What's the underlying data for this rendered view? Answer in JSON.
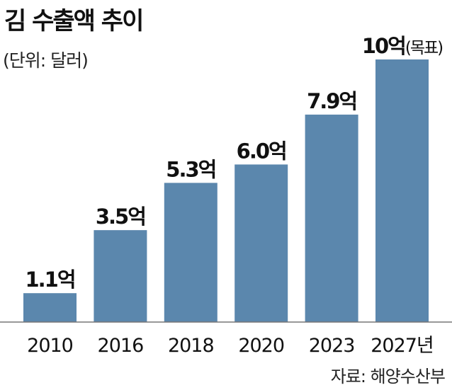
{
  "chart_data": {
    "type": "bar",
    "title": "김 수출액 추이",
    "unit_note": "(단위: 달러)",
    "source": "자료: 해양수산부",
    "categories": [
      "2010",
      "2016",
      "2018",
      "2020",
      "2023",
      "2027년"
    ],
    "values": [
      1.1,
      3.5,
      5.3,
      6.0,
      7.9,
      10
    ],
    "data_labels": [
      "1.1억",
      "3.5억",
      "5.3억",
      "6.0억",
      "7.9억",
      "10억"
    ],
    "data_label_notes": [
      "",
      "",
      "",
      "",
      "",
      "(목표)"
    ],
    "ylim": [
      0,
      10
    ],
    "grid": false,
    "bar_color": "#5b87ad"
  }
}
